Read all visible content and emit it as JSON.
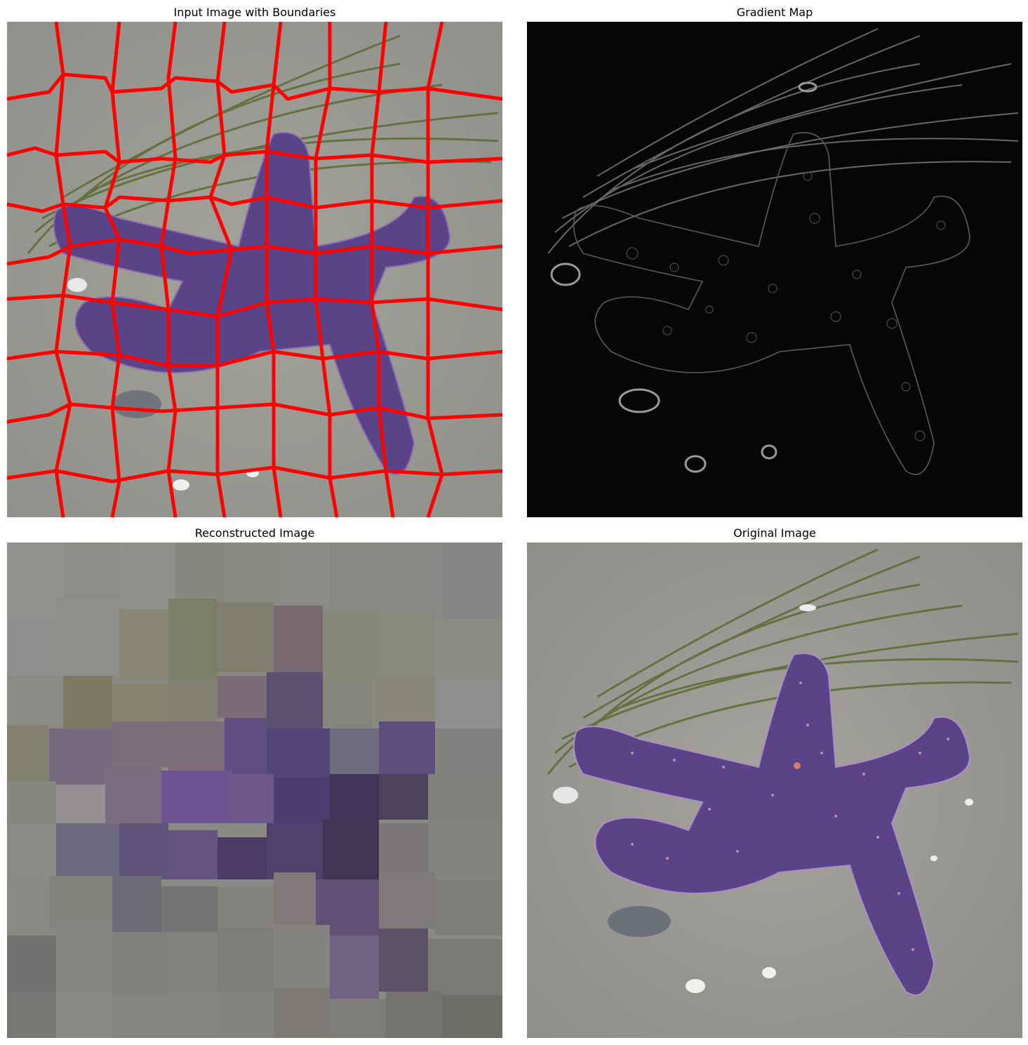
{
  "panels": [
    {
      "title": "Input Image with Boundaries"
    },
    {
      "title": "Gradient Map"
    },
    {
      "title": "Reconstructed Image"
    },
    {
      "title": "Original Image"
    }
  ],
  "colors": {
    "boundary": "#ff0000",
    "sand": "#9a9a92",
    "starfish": "#5a4488",
    "seagrass": "#5f6e3a",
    "gradient_bg": "#060606",
    "gradient_edge": "#8a8a8a"
  }
}
